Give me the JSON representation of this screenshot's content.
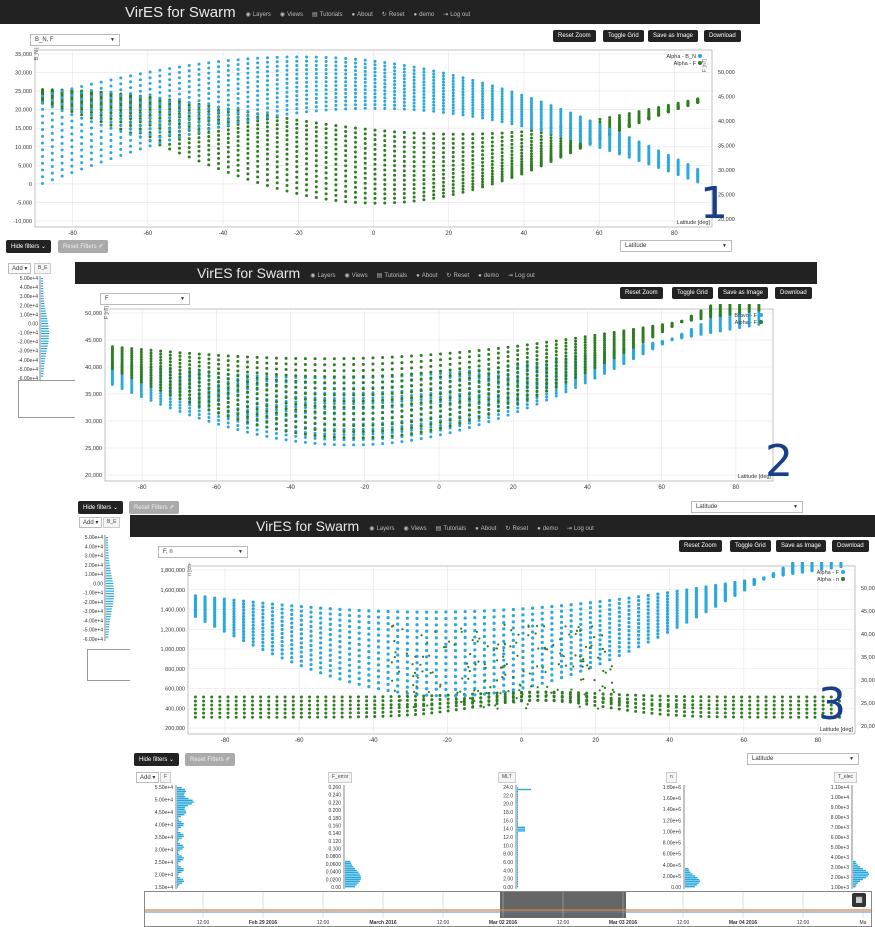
{
  "brand": "VirES for Swarm",
  "nav": [
    {
      "icon": "◉",
      "label": "Layers"
    },
    {
      "icon": "◉",
      "label": "Views"
    },
    {
      "icon": "▤",
      "label": "Tutorials"
    },
    {
      "icon": "●",
      "label": "About"
    },
    {
      "icon": "↻",
      "label": "Reset"
    },
    {
      "icon": "●",
      "label": "demo"
    },
    {
      "icon": "⇥",
      "label": "Log out"
    }
  ],
  "toolbar": {
    "reset_zoom": "Reset Zoom",
    "toggle_grid": "Toggle Grid",
    "save_image": "Save as Image",
    "download": "Download"
  },
  "filters": {
    "hide": "Hide filters ⌄",
    "reset": "Reset Filters ✐",
    "add": "Add ▾"
  },
  "panels": [
    {
      "number": "1",
      "param_select": "B_N, F",
      "x_select": "Latitude",
      "legend": [
        "Alpha - B_N",
        "Alpha - F"
      ],
      "left_label": "B_N [nT]",
      "right_label": "F [nT]",
      "x_axis_label": "Latitude [deg]",
      "side_chip": "B_E"
    },
    {
      "number": "2",
      "param_select": "F",
      "x_select": "Latitude",
      "legend": [
        "Bravo - F",
        "Alpha - F"
      ],
      "left_label": "F [nT]",
      "x_axis_label": "Latitude [deg]",
      "side_chip": "B_E"
    },
    {
      "number": "3",
      "param_select": "F, n",
      "x_select": "Latitude",
      "legend": [
        "Alpha - F",
        "Alpha - n"
      ],
      "left_label": "n [cm-3]",
      "x_axis_label": "Latitude [deg]"
    }
  ],
  "sidebar_ticks": [
    "5.00e+4",
    "4.00e+4",
    "3.00e+4",
    "2.00e+4",
    "1.00e+4",
    "0.00",
    "-1.00e+4",
    "-2.00e+4",
    "-3.00e+4",
    "-4.00e+4",
    "-5.00e+4",
    "-6.00e+4"
  ],
  "filter_chips": [
    "F",
    "F_error",
    "MLT",
    "n",
    "T_elec"
  ],
  "histograms": [
    {
      "ticks": [
        "5.50e+4",
        "5.00e+4",
        "4.50e+4",
        "4.00e+4",
        "3.50e+4",
        "3.00e+4",
        "2.50e+4",
        "2.00e+4",
        "1.50e+4"
      ]
    },
    {
      "ticks": [
        "0.260",
        "0.240",
        "0.220",
        "0.200",
        "0.180",
        "0.160",
        "0.140",
        "0.120",
        "0.100",
        "0.0800",
        "0.0600",
        "0.0400",
        "0.0200",
        "0.00"
      ]
    },
    {
      "ticks": [
        "24.0",
        "22.0",
        "20.0",
        "18.0",
        "16.0",
        "14.0",
        "12.0",
        "10.0",
        "8.00",
        "6.00",
        "4.00",
        "2.00",
        "0.00"
      ]
    },
    {
      "ticks": [
        "1.80e+6",
        "1.60e+6",
        "1.40e+6",
        "1.20e+6",
        "1.00e+6",
        "8.00e+5",
        "6.00e+5",
        "4.00e+5",
        "2.00e+5",
        "0.00"
      ]
    },
    {
      "ticks": [
        "1.10e+4",
        "1.00e+4",
        "9.00e+3",
        "8.00e+3",
        "7.00e+3",
        "6.00e+3",
        "5.00e+3",
        "4.00e+3",
        "3.00e+3",
        "2.00e+3",
        "1.00e+3"
      ]
    }
  ],
  "timeline_labels": [
    "12:00",
    "Feb 29 2016",
    "12:00",
    "March 2016",
    "12:00",
    "Mar 02 2016",
    "12:00",
    "Mar 03 2016",
    "12:00",
    "Mar 04 2016",
    "12:00",
    "Ma"
  ],
  "colors": {
    "blue": "#29a8dc",
    "green": "#2e7d20",
    "navbar": "#222222",
    "number": "#1a3f8a"
  },
  "chart_data": [
    {
      "type": "scatter",
      "x": [
        -90,
        -60,
        -40,
        -20,
        0,
        20,
        40,
        60,
        80,
        88
      ],
      "xlim": [
        -90,
        90
      ],
      "y_left_ticks": [
        "35,000",
        "30,000",
        "25,000",
        "20,000",
        "15,000",
        "10,000",
        "5,000",
        "0",
        "-5,000",
        "-10,000"
      ],
      "y_right_ticks": [
        "50,000",
        "45,000",
        "40,000",
        "35,000",
        "30,000",
        "25,000",
        "20,000"
      ],
      "x_ticks": [
        "-80",
        "-60",
        "-40",
        "-20",
        "0",
        "20",
        "40",
        "60",
        "80"
      ],
      "series": [
        {
          "name": "Alpha - B_N",
          "axis": "left"
        },
        {
          "name": "Alpha - F",
          "axis": "right"
        }
      ],
      "legend": "top-right",
      "grid": true
    },
    {
      "type": "scatter",
      "xlim": [
        -90,
        90
      ],
      "y_left_ticks": [
        "50,000",
        "45,000",
        "40,000",
        "35,000",
        "30,000",
        "25,000",
        "20,000"
      ],
      "x_ticks": [
        "-80",
        "-60",
        "-40",
        "-20",
        "0",
        "20",
        "40",
        "60",
        "80"
      ],
      "series": [
        {
          "name": "Bravo - F"
        },
        {
          "name": "Alpha - F"
        }
      ],
      "legend": "top-right",
      "grid": true
    },
    {
      "type": "scatter",
      "xlim": [
        -90,
        90
      ],
      "y_left_ticks": [
        "1,800,000",
        "1,600,000",
        "1,400,000",
        "1,200,000",
        "1,000,000",
        "800,000",
        "600,000",
        "400,000",
        "200,000"
      ],
      "y_right_ticks": [
        "50,00",
        "45,00",
        "40,00",
        "35,00",
        "30,00",
        "25,00",
        "20,00"
      ],
      "x_ticks": [
        "-80",
        "-60",
        "-40",
        "-20",
        "0",
        "20",
        "40",
        "60",
        "80"
      ],
      "series": [
        {
          "name": "Alpha - F",
          "axis": "right"
        },
        {
          "name": "Alpha - n",
          "axis": "left"
        }
      ],
      "legend": "top-right",
      "grid": true
    }
  ]
}
